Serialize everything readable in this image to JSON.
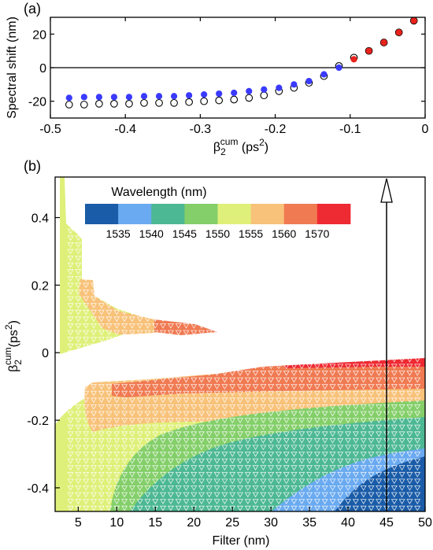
{
  "chart_data": [
    {
      "panel_label": "(a)",
      "type": "scatter",
      "xlabel": "β",
      "xlabel_sub": "2",
      "xlabel_sup": "cum",
      "xlabel_unit": " (ps",
      "xlabel_unit_sup": "2",
      "xlabel_close": ")",
      "ylabel": "Spectral shift (nm)",
      "xlim": [
        -0.5,
        0
      ],
      "ylim": [
        -30,
        30
      ],
      "x_ticks": [
        -0.5,
        -0.4,
        -0.3,
        -0.2,
        -0.1,
        0
      ],
      "x_tick_labels": [
        "-0.5",
        "-0.4",
        "-0.3",
        "-0.2",
        "-0.1",
        "0"
      ],
      "y_ticks": [
        -20,
        0,
        20
      ],
      "y_tick_labels": [
        "-20",
        "0",
        "20"
      ],
      "reference_line_y": 0,
      "series": [
        {
          "marker": "filled circle",
          "colors": {
            "normal": "#3a3aff",
            "positive": "#e8221c"
          },
          "x": [
            -0.475,
            -0.455,
            -0.435,
            -0.415,
            -0.395,
            -0.375,
            -0.355,
            -0.335,
            -0.315,
            -0.295,
            -0.275,
            -0.255,
            -0.235,
            -0.215,
            -0.195,
            -0.175,
            -0.155,
            -0.135,
            -0.115,
            -0.095,
            -0.075,
            -0.055,
            -0.035,
            -0.015
          ],
          "y": [
            -18,
            -17.5,
            -17.5,
            -17.5,
            -17.5,
            -17,
            -17,
            -17,
            -16.5,
            -16,
            -15.5,
            -15,
            -14,
            -13,
            -12,
            -10,
            -8,
            -4,
            0,
            5,
            10,
            15,
            21,
            28
          ]
        },
        {
          "marker": "open circle",
          "colors": {
            "stroke": "#000000"
          },
          "x": [
            -0.475,
            -0.455,
            -0.435,
            -0.415,
            -0.395,
            -0.375,
            -0.355,
            -0.335,
            -0.315,
            -0.295,
            -0.275,
            -0.255,
            -0.235,
            -0.215,
            -0.195,
            -0.175,
            -0.155,
            -0.135,
            -0.115,
            -0.095,
            -0.075,
            -0.055,
            -0.035,
            -0.015
          ],
          "y": [
            -22,
            -22,
            -21.5,
            -21.5,
            -21.5,
            -21,
            -21,
            -21,
            -20.5,
            -20,
            -19.5,
            -19,
            -18,
            -16.5,
            -14,
            -12,
            -9,
            -5,
            1,
            6,
            10,
            15,
            21,
            28
          ]
        }
      ]
    },
    {
      "panel_label": "(b)",
      "type": "heatmap",
      "xlabel": "Filter (nm)",
      "ylabel": "β",
      "ylabel_sub": "2",
      "ylabel_sup": "cum",
      "ylabel_unit": "(ps",
      "ylabel_unit_sup": "2",
      "ylabel_close": ")",
      "xlim": [
        2,
        50
      ],
      "ylim": [
        -0.47,
        0.52
      ],
      "x_ticks": [
        5,
        10,
        15,
        20,
        25,
        30,
        35,
        40,
        45,
        50
      ],
      "x_tick_labels": [
        "5",
        "10",
        "15",
        "20",
        "25",
        "30",
        "35",
        "40",
        "45",
        "50"
      ],
      "y_ticks": [
        0.4,
        0.2,
        0,
        -0.2,
        -0.4
      ],
      "y_tick_labels": [
        "0.4",
        "0.2",
        "0",
        "-0.2",
        "-0.4"
      ],
      "colorbar": {
        "title": "Wavelength (nm)",
        "colors": [
          "#1a5ca8",
          "#6aaaf0",
          "#4db894",
          "#84cf6a",
          "#dff07a",
          "#f8c27a",
          "#f07a52",
          "#ee2a32"
        ],
        "tick_labels": [
          "1535",
          "1540",
          "1545",
          "1550",
          "1555",
          "1560",
          "1570"
        ]
      },
      "marker_grid": {
        "marker": "open triangle-down",
        "color": "#ffffff",
        "x": [
          4,
          5,
          6,
          7,
          8,
          9,
          10,
          11,
          12,
          13,
          14,
          15,
          16,
          17,
          18,
          19,
          20,
          21,
          22,
          23,
          24,
          25,
          26,
          27,
          28,
          29,
          30,
          31,
          32,
          33,
          34,
          35,
          36,
          37,
          38,
          39,
          40,
          41,
          42,
          43,
          44,
          45,
          46,
          47,
          48,
          49
        ],
        "y_step": 0.02
      },
      "annotation": {
        "type": "arrow",
        "x": 45,
        "y_from": -0.47,
        "y_to": 0.52
      }
    }
  ]
}
